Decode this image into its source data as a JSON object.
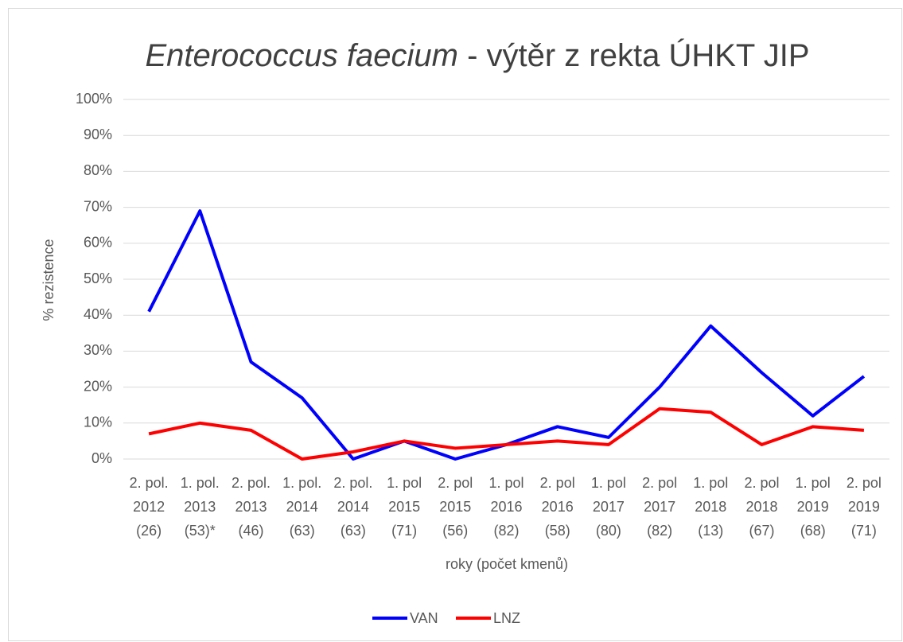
{
  "chart_data": {
    "type": "line",
    "title": [
      "Enterococcus faecium",
      " - výtěr z rekta ÚHKT JIP"
    ],
    "x_label": "roky (počet kmenů)",
    "y_label": "% rezistence",
    "categories": [
      [
        "2. pol.",
        "2012",
        "(26)"
      ],
      [
        "1. pol.",
        "2013",
        "(53)*"
      ],
      [
        "2. pol.",
        "2013",
        "(46)"
      ],
      [
        "1. pol.",
        "2014",
        "(63)"
      ],
      [
        "2. pol.",
        "2014",
        "(63)"
      ],
      [
        "1. pol",
        "2015",
        "(71)"
      ],
      [
        "2. pol",
        "2015",
        "(56)"
      ],
      [
        "1. pol",
        "2016",
        "(82)"
      ],
      [
        "2. pol",
        "2016",
        "(58)"
      ],
      [
        "1. pol",
        "2017",
        "(80)"
      ],
      [
        "2. pol",
        "2017",
        "(82)"
      ],
      [
        "1. pol",
        "2018",
        "(13)"
      ],
      [
        "2. pol",
        "2018",
        "(67)"
      ],
      [
        "1. pol",
        "2019",
        "(68)"
      ],
      [
        "2. pol",
        "2019",
        "(71)"
      ]
    ],
    "series": [
      {
        "name": "VAN",
        "color": "#0000ff",
        "values": [
          41,
          69,
          27,
          17,
          0,
          5,
          0,
          4,
          9,
          6,
          20,
          37,
          24,
          12,
          23
        ]
      },
      {
        "name": "LNZ",
        "color": "#ff0000",
        "values": [
          7,
          10,
          8,
          0,
          2,
          5,
          3,
          4,
          5,
          4,
          14,
          13,
          4,
          9,
          8
        ]
      }
    ],
    "ylim": [
      0,
      100
    ],
    "yticks": [
      {
        "value": 0,
        "label": "0%"
      },
      {
        "value": 10,
        "label": "10%"
      },
      {
        "value": 20,
        "label": "20%"
      },
      {
        "value": 30,
        "label": "30%"
      },
      {
        "value": 40,
        "label": "40%"
      },
      {
        "value": 50,
        "label": "50%"
      },
      {
        "value": 60,
        "label": "60%"
      },
      {
        "value": 70,
        "label": "70%"
      },
      {
        "value": 80,
        "label": "80%"
      },
      {
        "value": 90,
        "label": "90%"
      },
      {
        "value": 100,
        "label": "100%"
      }
    ],
    "grid": true,
    "legend": "bottom"
  }
}
